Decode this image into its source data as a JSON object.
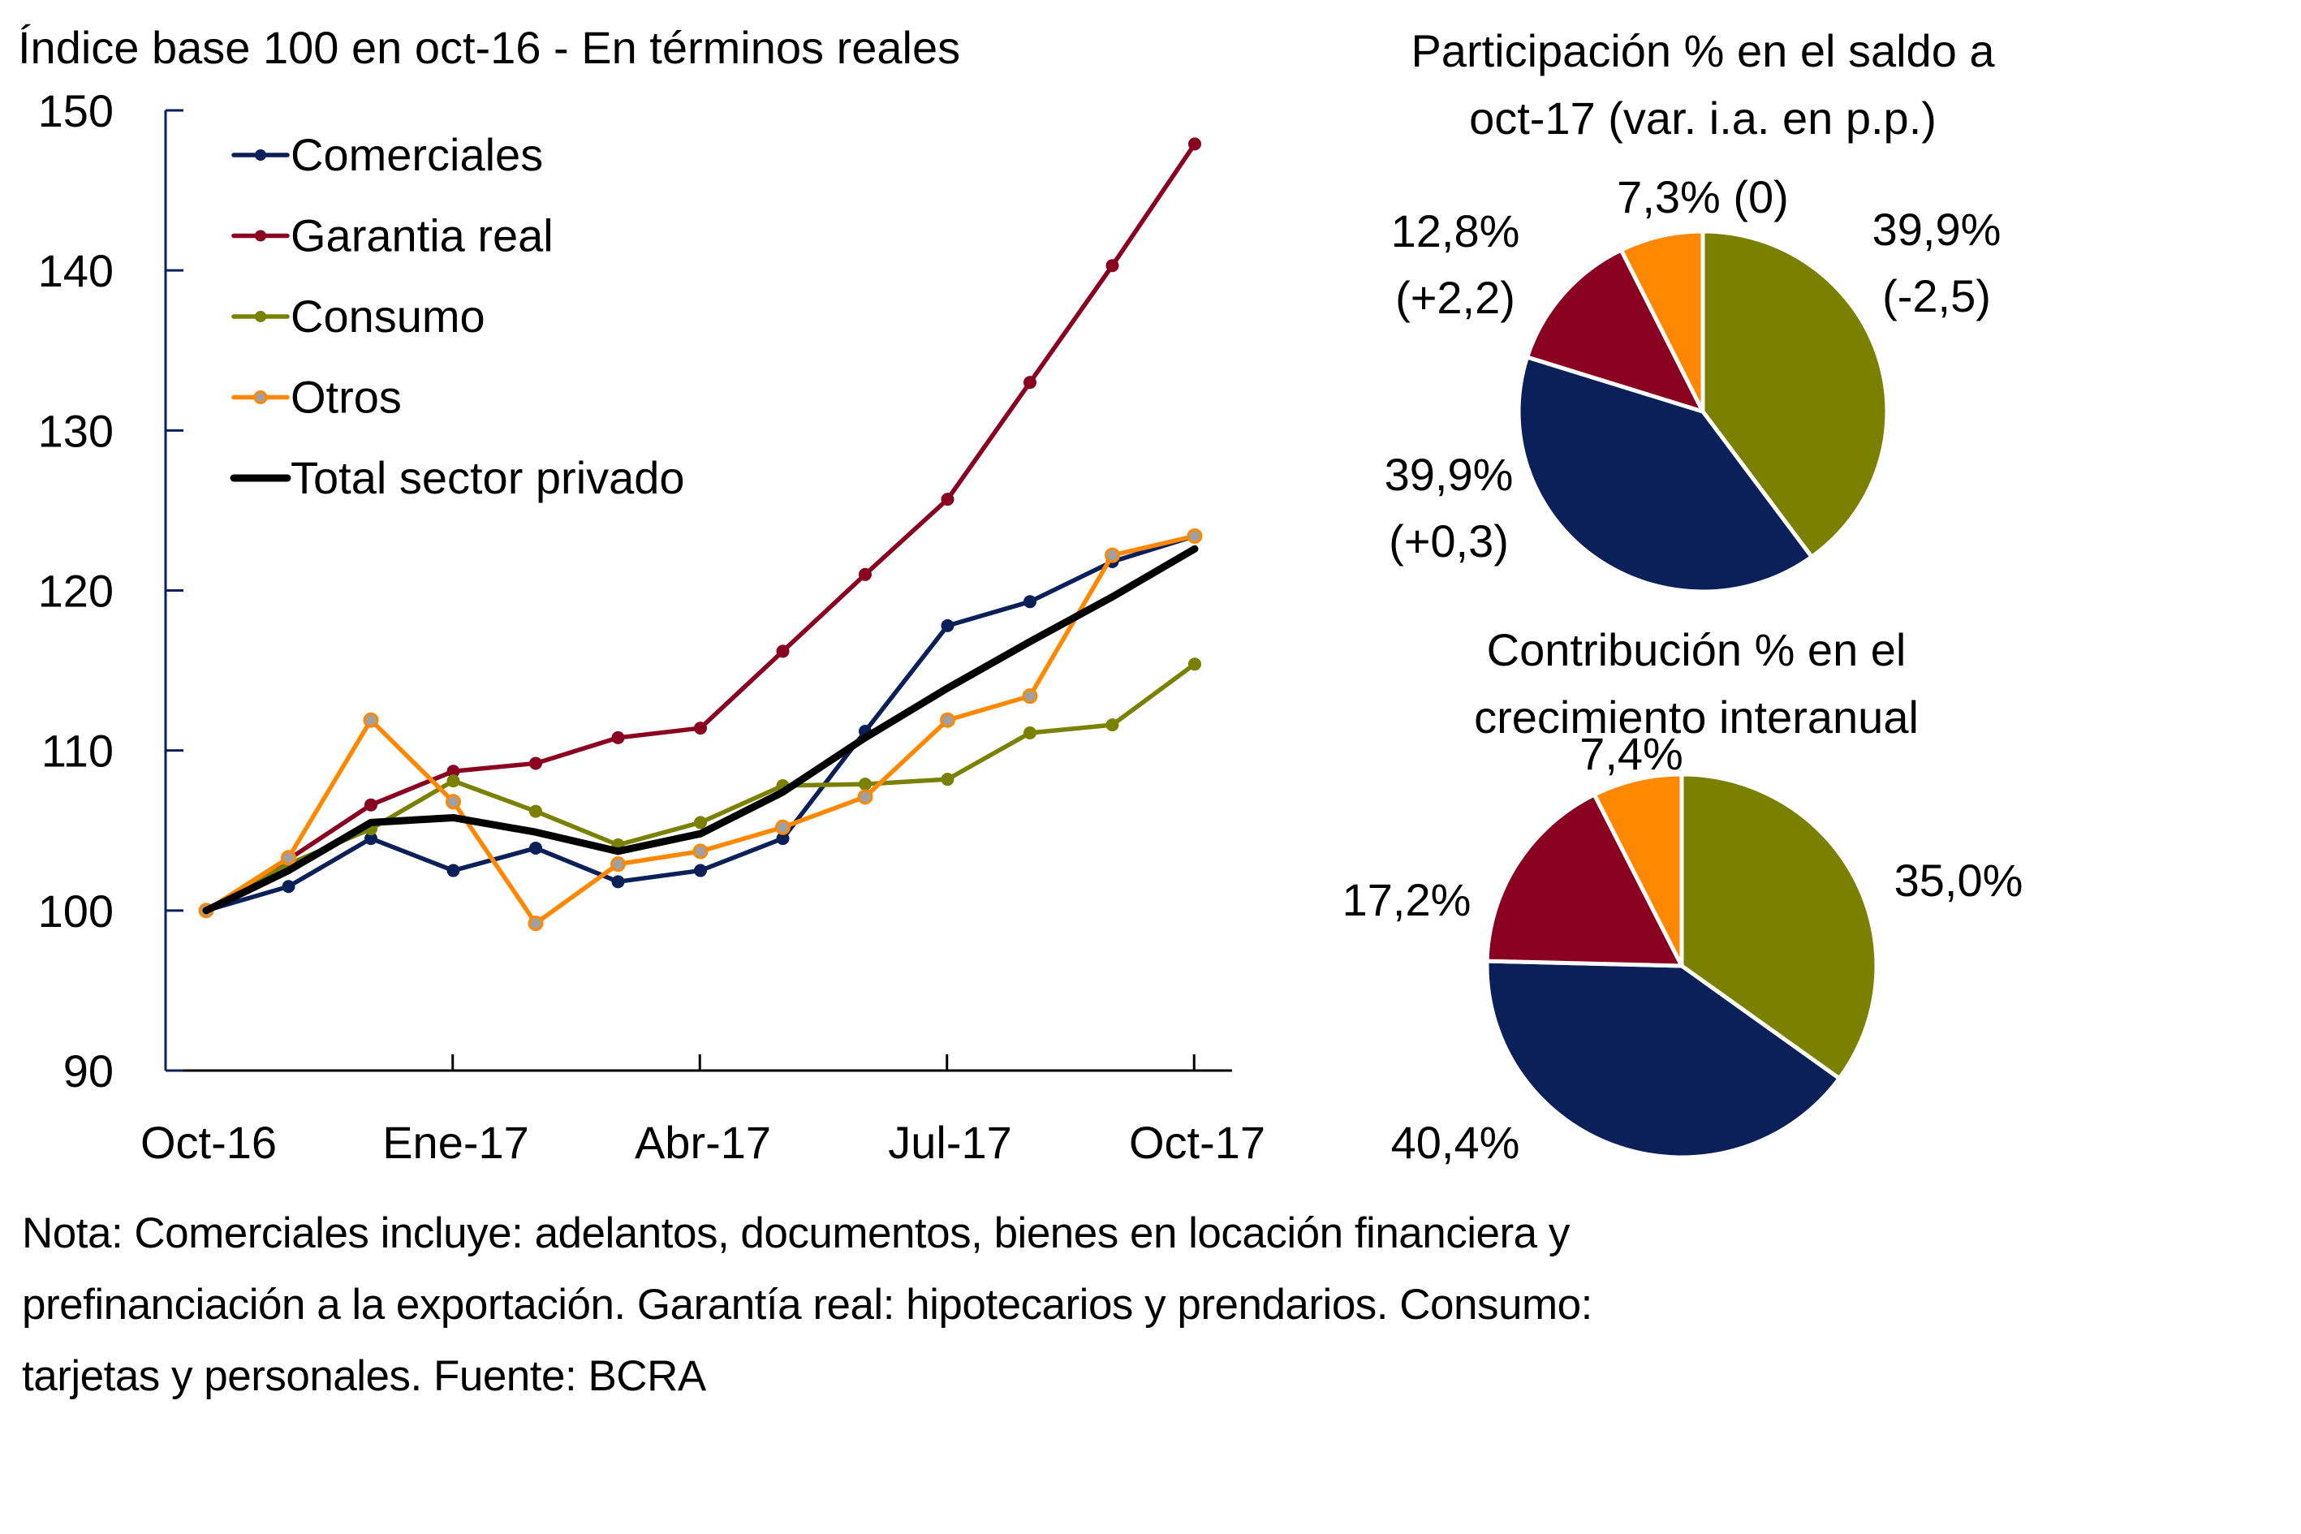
{
  "chart_data": [
    {
      "type": "line",
      "title": "Índice base 100 en oct-16 - En términos reales",
      "xlabel": "",
      "ylabel": "",
      "ylim": [
        90,
        150
      ],
      "yticks": [
        90,
        100,
        110,
        120,
        130,
        140,
        150
      ],
      "x": [
        "Oct-16",
        "Nov-16",
        "Dic-16",
        "Ene-17",
        "Feb-17",
        "Mar-17",
        "Abr-17",
        "May-17",
        "Jun-17",
        "Jul-17",
        "Ago-17",
        "Sep-17",
        "Oct-17"
      ],
      "xtick_labels": [
        "Oct-16",
        "Ene-17",
        "Abr-17",
        "Jul-17",
        "Oct-17"
      ],
      "grid": false,
      "legend": "top-left",
      "series": [
        {
          "name": "Comerciales",
          "color": "#0b2059",
          "marker": true,
          "values": [
            100,
            101.5,
            104.5,
            102.5,
            103.9,
            101.8,
            102.5,
            104.5,
            111.2,
            117.8,
            119.3,
            121.8,
            123.4
          ]
        },
        {
          "name": "Garantia real",
          "color": "#8a0020",
          "marker": true,
          "values": [
            100,
            103.2,
            106.6,
            108.7,
            109.2,
            110.8,
            111.4,
            116.2,
            121.0,
            125.7,
            133.0,
            140.3,
            147.9
          ]
        },
        {
          "name": "Consumo",
          "color": "#7a8000",
          "marker": true,
          "values": [
            100,
            102.9,
            105.1,
            108.1,
            106.2,
            104.1,
            105.5,
            107.8,
            107.9,
            108.2,
            111.1,
            111.6,
            115.4
          ]
        },
        {
          "name": "Otros",
          "color": "#ff8800",
          "marker": true,
          "marker_fill": "#a0a0a0",
          "values": [
            100,
            103.3,
            111.9,
            106.8,
            99.2,
            102.9,
            103.7,
            105.2,
            107.1,
            111.9,
            113.4,
            122.2,
            123.4
          ]
        },
        {
          "name": "Total sector privado",
          "color": "#000000",
          "marker": false,
          "values": [
            100,
            102.5,
            105.5,
            105.8,
            104.9,
            103.7,
            104.8,
            107.4,
            110.8,
            113.9,
            116.8,
            119.6,
            122.6
          ]
        }
      ]
    },
    {
      "type": "pie",
      "title": [
        "Participación % en el saldo a",
        "oct-17 (var. i.a. en p.p.)"
      ],
      "slices": [
        {
          "name": "Consumo",
          "value": 39.9,
          "color": "#7a8000",
          "label": [
            "39,9%",
            "(-2,5)"
          ]
        },
        {
          "name": "Comerciales",
          "value": 39.9,
          "color": "#0b2059",
          "label": [
            "39,9%",
            "(+0,3)"
          ]
        },
        {
          "name": "Garantia real",
          "value": 12.8,
          "color": "#8a0020",
          "label": [
            "12,8%",
            "(+2,2)"
          ]
        },
        {
          "name": "Otros",
          "value": 7.3,
          "color": "#ff8800",
          "label": [
            "7,3% (0)"
          ]
        }
      ]
    },
    {
      "type": "pie",
      "title": [
        "Contribución % en el",
        "crecimiento interanual"
      ],
      "slices": [
        {
          "name": "Consumo",
          "value": 35.0,
          "color": "#7a8000",
          "label": [
            "35,0%"
          ]
        },
        {
          "name": "Comerciales",
          "value": 40.4,
          "color": "#0b2059",
          "label": [
            "40,4%"
          ]
        },
        {
          "name": "Garantia real",
          "value": 17.2,
          "color": "#8a0020",
          "label": [
            "17,2%"
          ]
        },
        {
          "name": "Otros",
          "value": 7.4,
          "color": "#ff8800",
          "label": [
            "7,4%"
          ]
        }
      ]
    }
  ],
  "note": {
    "lines": [
      "Nota: Comerciales incluye: adelantos, documentos, bienes en locación financiera y",
      "prefinanciación a la exportación. Garantía real: hipotecarios y prendarios. Consumo:",
      "tarjetas y personales. Fuente: BCRA"
    ]
  }
}
